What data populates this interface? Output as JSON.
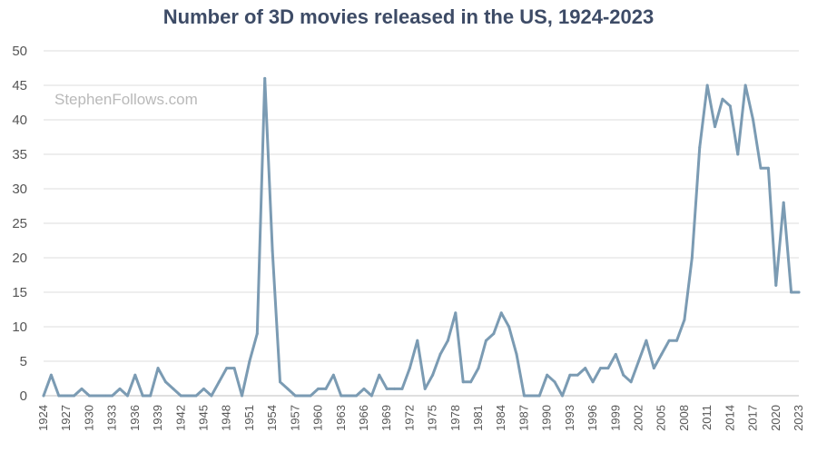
{
  "chart_data": {
    "type": "line",
    "title": "Number of 3D movies released in the US, 1924-2023",
    "watermark": "StephenFollows.com",
    "xlabel": "",
    "ylabel": "",
    "ylim": [
      0,
      50
    ],
    "yticks": [
      0,
      5,
      10,
      15,
      20,
      25,
      30,
      35,
      40,
      45,
      50
    ],
    "xticks": [
      1924,
      1927,
      1930,
      1933,
      1936,
      1939,
      1942,
      1945,
      1948,
      1951,
      1954,
      1957,
      1960,
      1963,
      1966,
      1969,
      1972,
      1975,
      1978,
      1981,
      1984,
      1987,
      1990,
      1993,
      1996,
      1999,
      2002,
      2005,
      2008,
      2011,
      2014,
      2017,
      2020,
      2023
    ],
    "grid": true,
    "line_color": "#7b9bb3",
    "series": [
      {
        "name": "3D movies",
        "x_start": 1924,
        "x_end": 2023,
        "values": [
          0,
          3,
          0,
          0,
          0,
          1,
          0,
          0,
          0,
          0,
          1,
          0,
          3,
          0,
          0,
          4,
          2,
          1,
          0,
          0,
          0,
          1,
          0,
          2,
          4,
          4,
          0,
          5,
          9,
          46,
          21,
          2,
          1,
          0,
          0,
          0,
          1,
          1,
          3,
          0,
          0,
          0,
          1,
          0,
          3,
          1,
          1,
          1,
          4,
          8,
          1,
          3,
          6,
          8,
          12,
          2,
          2,
          4,
          8,
          9,
          12,
          10,
          6,
          0,
          0,
          0,
          3,
          2,
          0,
          3,
          3,
          4,
          2,
          4,
          4,
          6,
          3,
          2,
          5,
          8,
          4,
          6,
          8,
          8,
          11,
          20,
          36,
          45,
          39,
          43,
          42,
          35,
          45,
          40,
          33,
          33,
          16,
          28,
          15,
          15
        ]
      }
    ]
  }
}
